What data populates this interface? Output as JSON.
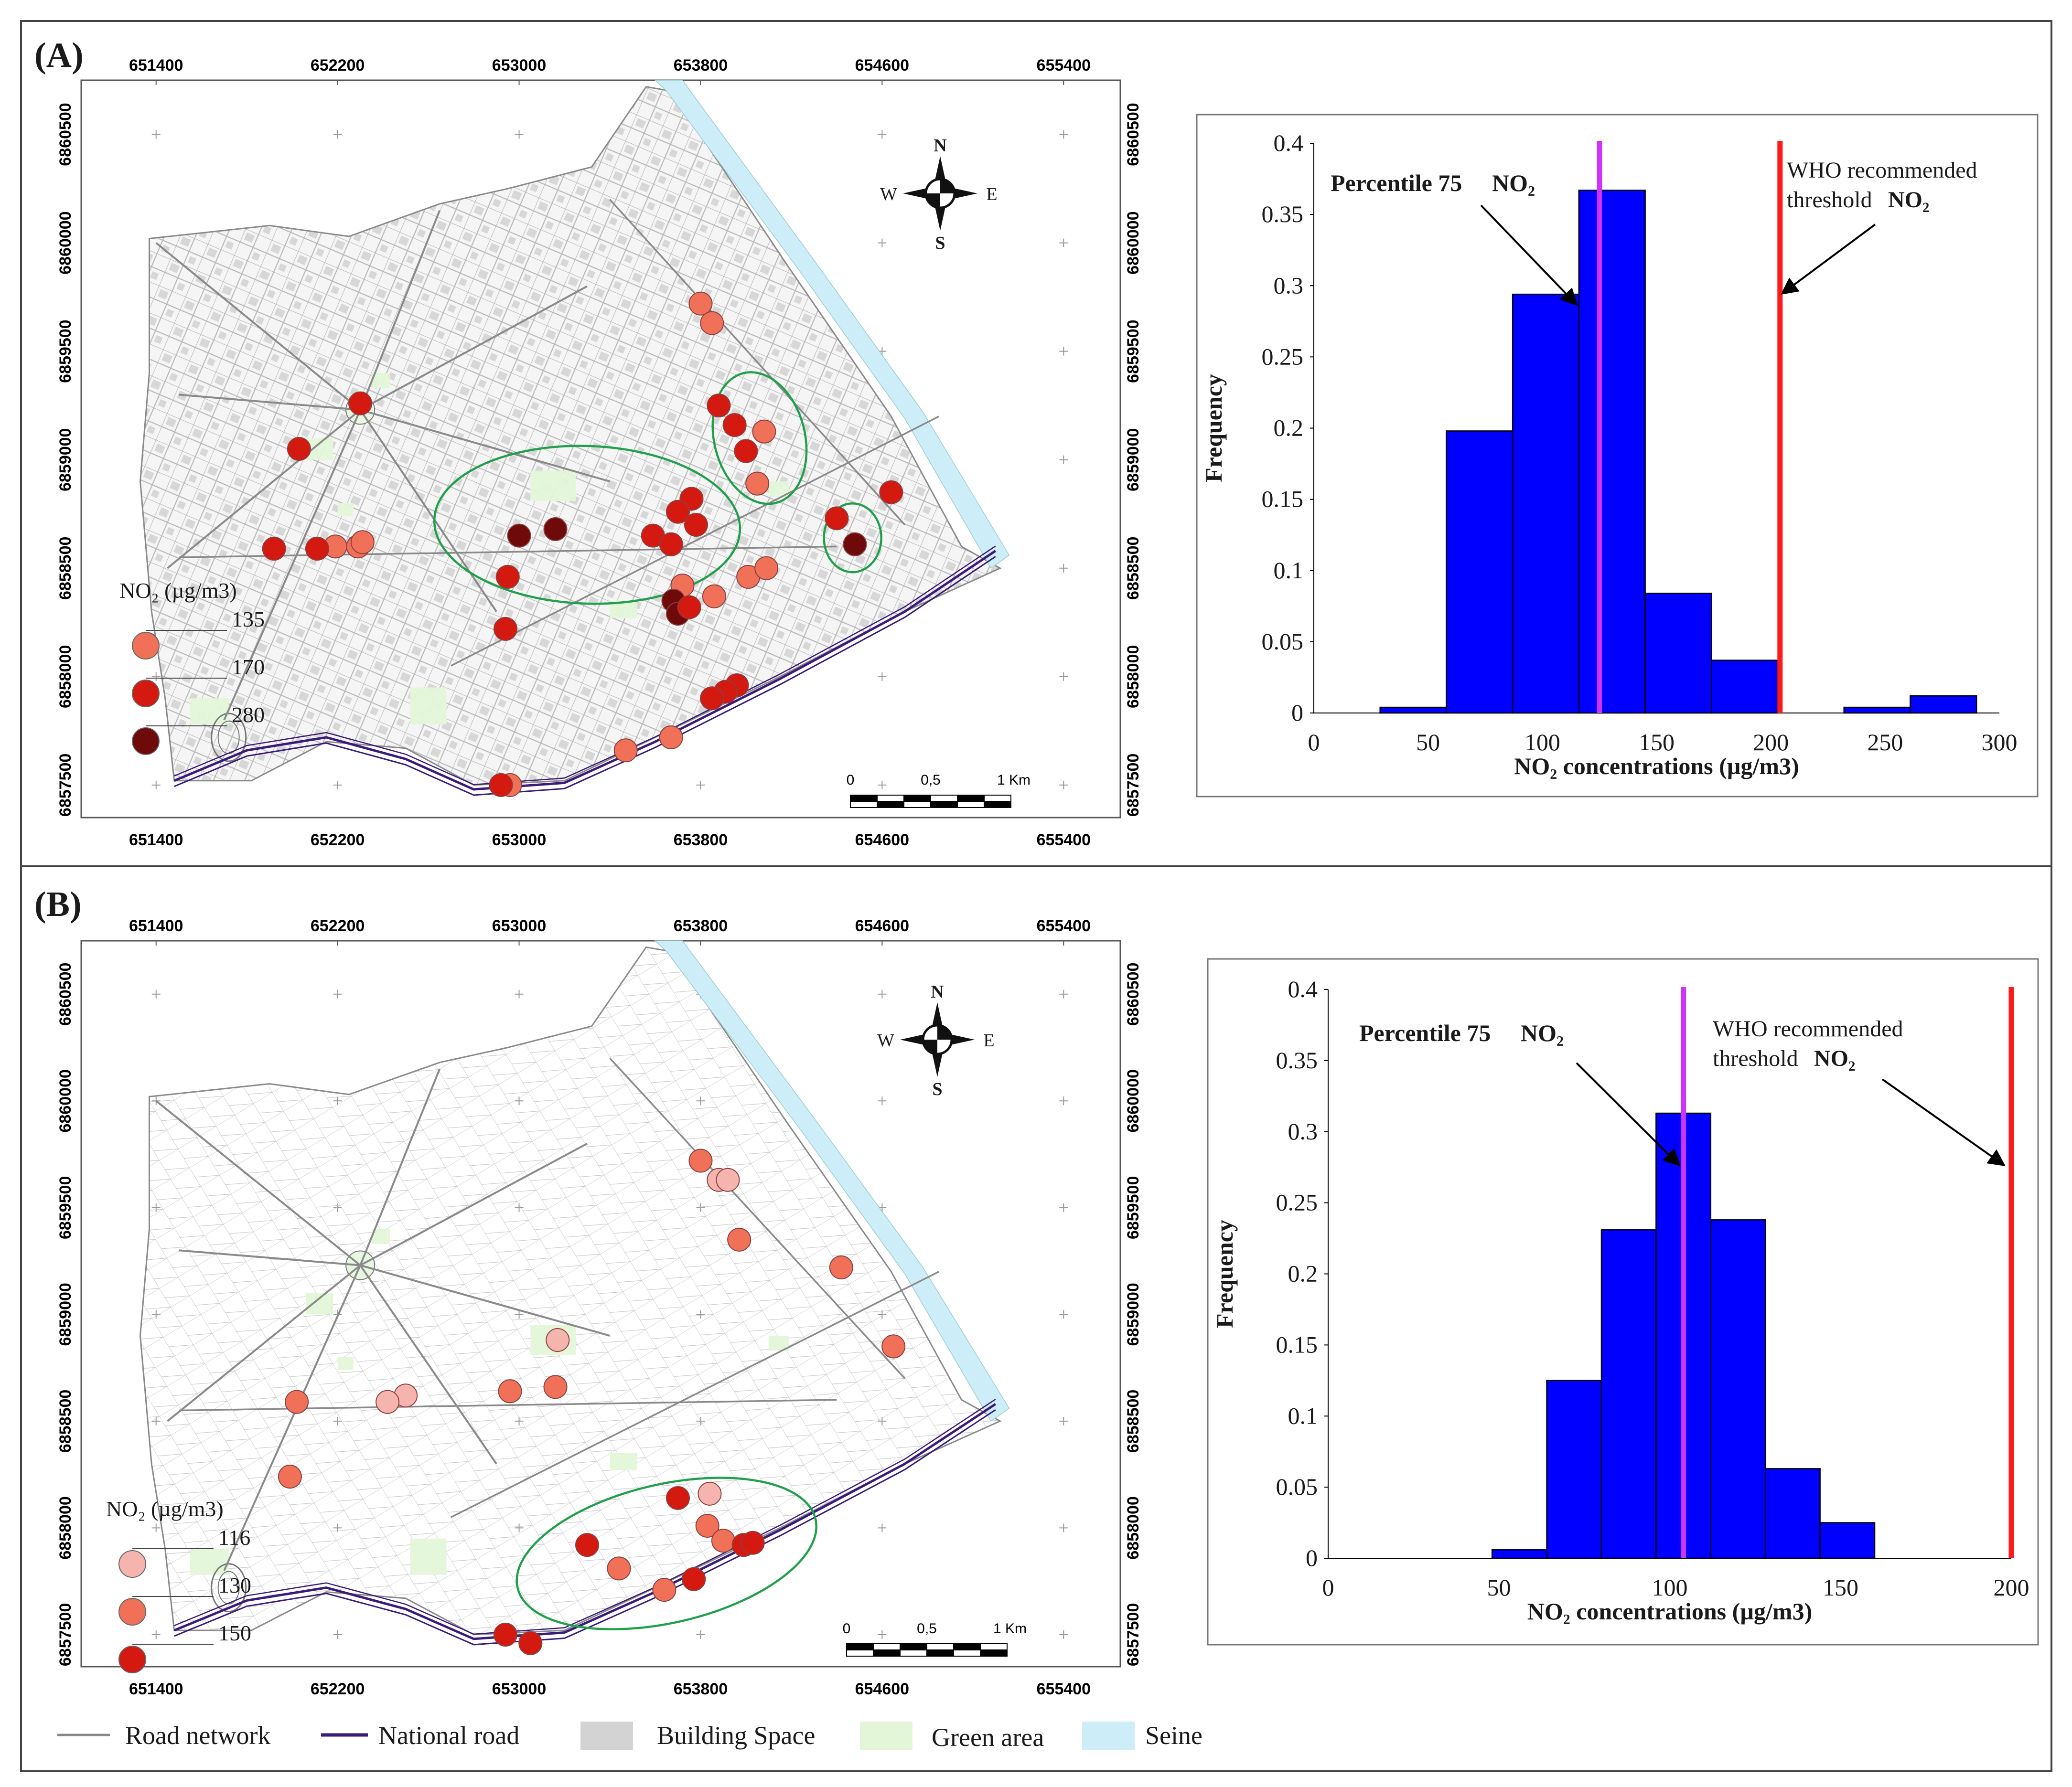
{
  "panels": [
    {
      "id": "A",
      "label": "(A)",
      "map": {
        "x_ticks": [
          "651400",
          "652200",
          "653000",
          "653800",
          "654600",
          "655400"
        ],
        "y_ticks": [
          "6860500",
          "6860000",
          "6859500",
          "6859000",
          "6858500",
          "6858000",
          "6857500"
        ],
        "compass": {
          "n": "N",
          "s": "S",
          "e": "E",
          "w": "W"
        },
        "scalebar": {
          "labels": [
            "0",
            "0,5",
            "1 Km"
          ]
        },
        "legend": {
          "title": "NO₂ (µg/m3)",
          "classes": [
            {
              "value": "135",
              "color": "#F07058"
            },
            {
              "value": "170",
              "color": "#D41A10"
            },
            {
              "value": "280",
              "color": "#6E0A0A"
            }
          ]
        }
      },
      "chart_data": {
        "type": "bar",
        "title": "",
        "xlabel": "NO₂ concentrations (µg/m3)",
        "ylabel": "Frequency",
        "x_ticks": [
          0,
          50,
          100,
          150,
          200,
          250,
          300
        ],
        "y_ticks": [
          0,
          0.05,
          0.1,
          0.15,
          0.2,
          0.25,
          0.3,
          0.35,
          0.4
        ],
        "xlim": [
          0,
          300
        ],
        "ylim": [
          0,
          0.4
        ],
        "bins": [
          {
            "x0": 29,
            "x1": 58,
            "y": 0.004
          },
          {
            "x0": 58,
            "x1": 87,
            "y": 0.198
          },
          {
            "x0": 87,
            "x1": 116,
            "y": 0.294
          },
          {
            "x0": 116,
            "x1": 145,
            "y": 0.367
          },
          {
            "x0": 145,
            "x1": 174,
            "y": 0.084
          },
          {
            "x0": 174,
            "x1": 203,
            "y": 0.037
          },
          {
            "x0": 203,
            "x1": 232,
            "y": 0.0
          },
          {
            "x0": 232,
            "x1": 261,
            "y": 0.004
          },
          {
            "x0": 261,
            "x1": 290,
            "y": 0.012
          }
        ],
        "bar_color": "#0000FF",
        "lines": [
          {
            "name": "Percentile 75 NO2",
            "x": 125,
            "color": "#CC33FF"
          },
          {
            "name": "WHO recommended threshold NO2",
            "x": 204,
            "color": "#FF1A1A"
          }
        ],
        "annotations": {
          "percentile": "Percentile 75",
          "who_line1": "WHO recommended",
          "who_line2": "threshold",
          "no2": "NO₂"
        }
      }
    },
    {
      "id": "B",
      "label": "(B)",
      "map": {
        "x_ticks": [
          "651400",
          "652200",
          "653000",
          "653800",
          "654600",
          "655400"
        ],
        "y_ticks": [
          "6860500",
          "6860000",
          "6859500",
          "6859000",
          "6858500",
          "6858000",
          "6857500"
        ],
        "compass": {
          "n": "N",
          "s": "S",
          "e": "E",
          "w": "W"
        },
        "scalebar": {
          "labels": [
            "0",
            "0,5",
            "1 Km"
          ]
        },
        "legend": {
          "title": "NO₂ (µg/m3)",
          "classes": [
            {
              "value": "116",
              "color": "#F6B4AE"
            },
            {
              "value": "130",
              "color": "#F07058"
            },
            {
              "value": "150",
              "color": "#D41A10"
            }
          ]
        }
      },
      "chart_data": {
        "type": "bar",
        "title": "",
        "xlabel": "NO₂ concentrations (µg/m3)",
        "ylabel": "Frequency",
        "x_ticks": [
          0,
          50,
          100,
          150,
          200
        ],
        "y_ticks": [
          0,
          0.05,
          0.1,
          0.15,
          0.2,
          0.25,
          0.3,
          0.35,
          0.4
        ],
        "xlim": [
          0,
          200
        ],
        "ylim": [
          0,
          0.4
        ],
        "bins": [
          {
            "x0": 48,
            "x1": 64,
            "y": 0.006
          },
          {
            "x0": 64,
            "x1": 80,
            "y": 0.125
          },
          {
            "x0": 80,
            "x1": 96,
            "y": 0.231
          },
          {
            "x0": 96,
            "x1": 112,
            "y": 0.313
          },
          {
            "x0": 112,
            "x1": 128,
            "y": 0.238
          },
          {
            "x0": 128,
            "x1": 144,
            "y": 0.063
          },
          {
            "x0": 144,
            "x1": 160,
            "y": 0.025
          }
        ],
        "bar_color": "#0000FF",
        "lines": [
          {
            "name": "Percentile 75 NO2",
            "x": 104,
            "color": "#CC33FF"
          },
          {
            "name": "WHO recommended threshold NO2",
            "x": 200,
            "color": "#FF1A1A"
          }
        ],
        "annotations": {
          "percentile": "Percentile 75",
          "who_line1": "WHO recommended",
          "who_line2": "threshold",
          "no2": "NO₂"
        }
      }
    }
  ],
  "legend_bottom": [
    {
      "label": "Road network",
      "color": "#888888"
    },
    {
      "label": "National road",
      "color": "#3A1A7A"
    },
    {
      "label": "Building Space",
      "color": "#D3D3D3"
    },
    {
      "label": "Green area",
      "color": "#E3F7D8"
    },
    {
      "label": "Seine",
      "color": "#CDEEF9"
    }
  ],
  "sites_A": [
    {
      "x": 653800,
      "y": 6859720,
      "v": 135
    },
    {
      "x": 653850,
      "y": 6859630,
      "v": 135
    },
    {
      "x": 652300,
      "y": 6859260,
      "v": 170
    },
    {
      "x": 652030,
      "y": 6859050,
      "v": 170
    },
    {
      "x": 653880,
      "y": 6859250,
      "v": 170
    },
    {
      "x": 653950,
      "y": 6859160,
      "v": 170
    },
    {
      "x": 654000,
      "y": 6859040,
      "v": 170
    },
    {
      "x": 654080,
      "y": 6859130,
      "v": 135
    },
    {
      "x": 654050,
      "y": 6858890,
      "v": 135
    },
    {
      "x": 653760,
      "y": 6858820,
      "v": 170
    },
    {
      "x": 653700,
      "y": 6858760,
      "v": 170
    },
    {
      "x": 653780,
      "y": 6858700,
      "v": 170
    },
    {
      "x": 653590,
      "y": 6858650,
      "v": 170
    },
    {
      "x": 653670,
      "y": 6858610,
      "v": 170
    },
    {
      "x": 653000,
      "y": 6858650,
      "v": 280
    },
    {
      "x": 653160,
      "y": 6858680,
      "v": 280
    },
    {
      "x": 652950,
      "y": 6858460,
      "v": 170
    },
    {
      "x": 652290,
      "y": 6858600,
      "v": 135
    },
    {
      "x": 652190,
      "y": 6858600,
      "v": 135
    },
    {
      "x": 652110,
      "y": 6858590,
      "v": 170
    },
    {
      "x": 651920,
      "y": 6858590,
      "v": 170
    },
    {
      "x": 652310,
      "y": 6858620,
      "v": 135
    },
    {
      "x": 653720,
      "y": 6858420,
      "v": 135
    },
    {
      "x": 653680,
      "y": 6858350,
      "v": 280
    },
    {
      "x": 653700,
      "y": 6858290,
      "v": 280
    },
    {
      "x": 653750,
      "y": 6858320,
      "v": 170
    },
    {
      "x": 653860,
      "y": 6858370,
      "v": 135
    },
    {
      "x": 654010,
      "y": 6858460,
      "v": 135
    },
    {
      "x": 654090,
      "y": 6858500,
      "v": 135
    },
    {
      "x": 654400,
      "y": 6858730,
      "v": 170
    },
    {
      "x": 654480,
      "y": 6858610,
      "v": 280
    },
    {
      "x": 654640,
      "y": 6858850,
      "v": 170
    },
    {
      "x": 652940,
      "y": 6858220,
      "v": 170
    },
    {
      "x": 653960,
      "y": 6857960,
      "v": 170
    },
    {
      "x": 653910,
      "y": 6857930,
      "v": 170
    },
    {
      "x": 653850,
      "y": 6857900,
      "v": 170
    },
    {
      "x": 653470,
      "y": 6857660,
      "v": 135
    },
    {
      "x": 653670,
      "y": 6857720,
      "v": 135
    },
    {
      "x": 652960,
      "y": 6857500,
      "v": 135
    },
    {
      "x": 652920,
      "y": 6857500,
      "v": 170
    }
  ],
  "sites_B": [
    {
      "x": 653800,
      "y": 6859720,
      "v": 130
    },
    {
      "x": 653880,
      "y": 6859630,
      "v": 116
    },
    {
      "x": 653920,
      "y": 6859630,
      "v": 116
    },
    {
      "x": 653970,
      "y": 6859350,
      "v": 130
    },
    {
      "x": 654420,
      "y": 6859220,
      "v": 130
    },
    {
      "x": 654650,
      "y": 6858850,
      "v": 130
    },
    {
      "x": 653170,
      "y": 6858880,
      "v": 116
    },
    {
      "x": 653160,
      "y": 6858660,
      "v": 130
    },
    {
      "x": 652960,
      "y": 6858640,
      "v": 130
    },
    {
      "x": 652500,
      "y": 6858620,
      "v": 116
    },
    {
      "x": 652420,
      "y": 6858590,
      "v": 116
    },
    {
      "x": 652020,
      "y": 6858590,
      "v": 130
    },
    {
      "x": 651990,
      "y": 6858240,
      "v": 130
    },
    {
      "x": 653700,
      "y": 6858140,
      "v": 150
    },
    {
      "x": 653840,
      "y": 6858160,
      "v": 116
    },
    {
      "x": 653830,
      "y": 6858010,
      "v": 130
    },
    {
      "x": 653900,
      "y": 6857940,
      "v": 130
    },
    {
      "x": 653990,
      "y": 6857920,
      "v": 150
    },
    {
      "x": 654030,
      "y": 6857930,
      "v": 150
    },
    {
      "x": 653300,
      "y": 6857920,
      "v": 150
    },
    {
      "x": 653440,
      "y": 6857810,
      "v": 130
    },
    {
      "x": 653770,
      "y": 6857760,
      "v": 150
    },
    {
      "x": 653640,
      "y": 6857710,
      "v": 130
    },
    {
      "x": 652940,
      "y": 6857500,
      "v": 150
    },
    {
      "x": 653050,
      "y": 6857460,
      "v": 150
    }
  ]
}
